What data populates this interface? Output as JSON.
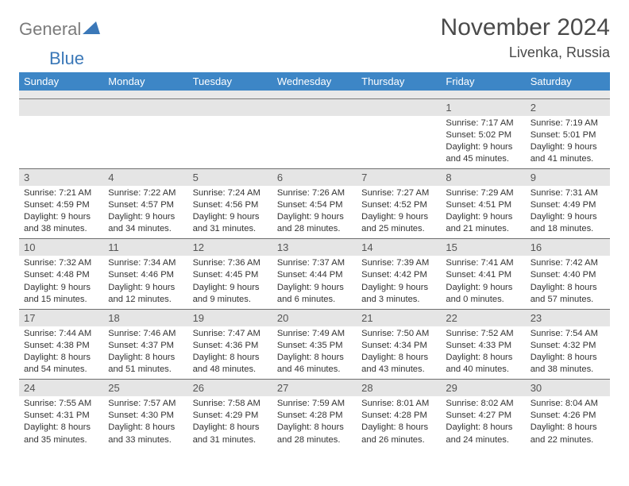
{
  "logo": {
    "general": "General",
    "blue": "Blue"
  },
  "title": "November 2024",
  "location": "Livenka, Russia",
  "columns": [
    "Sunday",
    "Monday",
    "Tuesday",
    "Wednesday",
    "Thursday",
    "Friday",
    "Saturday"
  ],
  "colors": {
    "header_bg": "#3d86c6",
    "header_text": "#ffffff",
    "date_bg": "#e5e5e5",
    "date_border": "#6f6f6f",
    "body_text": "#333333",
    "title_text": "#4a4a4a",
    "logo_gray": "#7b7b7b",
    "logo_blue": "#3b78b8",
    "background": "#ffffff"
  },
  "fonts": {
    "title_size": 30,
    "location_size": 18,
    "header_size": 13,
    "daynum_size": 13,
    "cell_size": 11
  },
  "weeks": [
    [
      null,
      null,
      null,
      null,
      null,
      {
        "n": "1",
        "sr": "Sunrise: 7:17 AM",
        "ss": "Sunset: 5:02 PM",
        "dl": "Daylight: 9 hours and 45 minutes."
      },
      {
        "n": "2",
        "sr": "Sunrise: 7:19 AM",
        "ss": "Sunset: 5:01 PM",
        "dl": "Daylight: 9 hours and 41 minutes."
      }
    ],
    [
      {
        "n": "3",
        "sr": "Sunrise: 7:21 AM",
        "ss": "Sunset: 4:59 PM",
        "dl": "Daylight: 9 hours and 38 minutes."
      },
      {
        "n": "4",
        "sr": "Sunrise: 7:22 AM",
        "ss": "Sunset: 4:57 PM",
        "dl": "Daylight: 9 hours and 34 minutes."
      },
      {
        "n": "5",
        "sr": "Sunrise: 7:24 AM",
        "ss": "Sunset: 4:56 PM",
        "dl": "Daylight: 9 hours and 31 minutes."
      },
      {
        "n": "6",
        "sr": "Sunrise: 7:26 AM",
        "ss": "Sunset: 4:54 PM",
        "dl": "Daylight: 9 hours and 28 minutes."
      },
      {
        "n": "7",
        "sr": "Sunrise: 7:27 AM",
        "ss": "Sunset: 4:52 PM",
        "dl": "Daylight: 9 hours and 25 minutes."
      },
      {
        "n": "8",
        "sr": "Sunrise: 7:29 AM",
        "ss": "Sunset: 4:51 PM",
        "dl": "Daylight: 9 hours and 21 minutes."
      },
      {
        "n": "9",
        "sr": "Sunrise: 7:31 AM",
        "ss": "Sunset: 4:49 PM",
        "dl": "Daylight: 9 hours and 18 minutes."
      }
    ],
    [
      {
        "n": "10",
        "sr": "Sunrise: 7:32 AM",
        "ss": "Sunset: 4:48 PM",
        "dl": "Daylight: 9 hours and 15 minutes."
      },
      {
        "n": "11",
        "sr": "Sunrise: 7:34 AM",
        "ss": "Sunset: 4:46 PM",
        "dl": "Daylight: 9 hours and 12 minutes."
      },
      {
        "n": "12",
        "sr": "Sunrise: 7:36 AM",
        "ss": "Sunset: 4:45 PM",
        "dl": "Daylight: 9 hours and 9 minutes."
      },
      {
        "n": "13",
        "sr": "Sunrise: 7:37 AM",
        "ss": "Sunset: 4:44 PM",
        "dl": "Daylight: 9 hours and 6 minutes."
      },
      {
        "n": "14",
        "sr": "Sunrise: 7:39 AM",
        "ss": "Sunset: 4:42 PM",
        "dl": "Daylight: 9 hours and 3 minutes."
      },
      {
        "n": "15",
        "sr": "Sunrise: 7:41 AM",
        "ss": "Sunset: 4:41 PM",
        "dl": "Daylight: 9 hours and 0 minutes."
      },
      {
        "n": "16",
        "sr": "Sunrise: 7:42 AM",
        "ss": "Sunset: 4:40 PM",
        "dl": "Daylight: 8 hours and 57 minutes."
      }
    ],
    [
      {
        "n": "17",
        "sr": "Sunrise: 7:44 AM",
        "ss": "Sunset: 4:38 PM",
        "dl": "Daylight: 8 hours and 54 minutes."
      },
      {
        "n": "18",
        "sr": "Sunrise: 7:46 AM",
        "ss": "Sunset: 4:37 PM",
        "dl": "Daylight: 8 hours and 51 minutes."
      },
      {
        "n": "19",
        "sr": "Sunrise: 7:47 AM",
        "ss": "Sunset: 4:36 PM",
        "dl": "Daylight: 8 hours and 48 minutes."
      },
      {
        "n": "20",
        "sr": "Sunrise: 7:49 AM",
        "ss": "Sunset: 4:35 PM",
        "dl": "Daylight: 8 hours and 46 minutes."
      },
      {
        "n": "21",
        "sr": "Sunrise: 7:50 AM",
        "ss": "Sunset: 4:34 PM",
        "dl": "Daylight: 8 hours and 43 minutes."
      },
      {
        "n": "22",
        "sr": "Sunrise: 7:52 AM",
        "ss": "Sunset: 4:33 PM",
        "dl": "Daylight: 8 hours and 40 minutes."
      },
      {
        "n": "23",
        "sr": "Sunrise: 7:54 AM",
        "ss": "Sunset: 4:32 PM",
        "dl": "Daylight: 8 hours and 38 minutes."
      }
    ],
    [
      {
        "n": "24",
        "sr": "Sunrise: 7:55 AM",
        "ss": "Sunset: 4:31 PM",
        "dl": "Daylight: 8 hours and 35 minutes."
      },
      {
        "n": "25",
        "sr": "Sunrise: 7:57 AM",
        "ss": "Sunset: 4:30 PM",
        "dl": "Daylight: 8 hours and 33 minutes."
      },
      {
        "n": "26",
        "sr": "Sunrise: 7:58 AM",
        "ss": "Sunset: 4:29 PM",
        "dl": "Daylight: 8 hours and 31 minutes."
      },
      {
        "n": "27",
        "sr": "Sunrise: 7:59 AM",
        "ss": "Sunset: 4:28 PM",
        "dl": "Daylight: 8 hours and 28 minutes."
      },
      {
        "n": "28",
        "sr": "Sunrise: 8:01 AM",
        "ss": "Sunset: 4:28 PM",
        "dl": "Daylight: 8 hours and 26 minutes."
      },
      {
        "n": "29",
        "sr": "Sunrise: 8:02 AM",
        "ss": "Sunset: 4:27 PM",
        "dl": "Daylight: 8 hours and 24 minutes."
      },
      {
        "n": "30",
        "sr": "Sunrise: 8:04 AM",
        "ss": "Sunset: 4:26 PM",
        "dl": "Daylight: 8 hours and 22 minutes."
      }
    ]
  ]
}
